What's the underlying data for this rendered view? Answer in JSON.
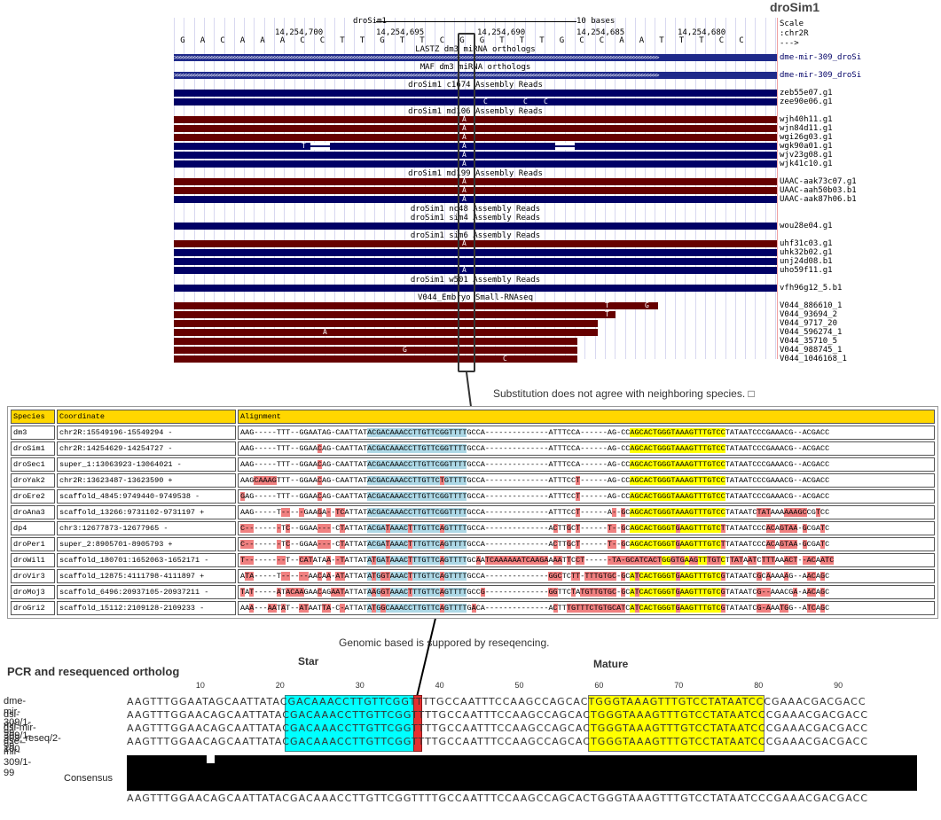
{
  "browser": {
    "title": "droSim1",
    "scale": {
      "label": "droSim1",
      "bases": "10 bases",
      "right_labels": [
        "Scale",
        ":chr2R",
        "--->"
      ]
    },
    "positions": [
      "14,254,700",
      "14,254,695",
      "14,254,690",
      "14,254,685",
      "14,254,680"
    ],
    "bases": [
      "G",
      "A",
      "C",
      "A",
      "A",
      "A",
      "C",
      "C",
      "T",
      "T",
      "G",
      "T",
      "T",
      "C",
      "G",
      "G",
      "T",
      "T",
      "T",
      "G",
      "C",
      "C",
      "A",
      "A",
      "T",
      "T",
      "T",
      "C",
      "C"
    ],
    "tracks": [
      {
        "label": "LASTZ dm3 miRNA orthologs",
        "items": [
          {
            "name": "dme-mir-309_droSi",
            "color": "chevron"
          }
        ]
      },
      {
        "label": "MAF dm3 miRNA orthologs",
        "items": [
          {
            "name": "dme-mir-309_droSi",
            "color": "chevron"
          }
        ]
      },
      {
        "label": "droSim1 c1674 Assembly Reads",
        "items": [
          {
            "name": "zeb55e07.g1",
            "color": "navy",
            "letters": []
          },
          {
            "name": "zee90e06.g1",
            "color": "navy",
            "letters": [
              "C",
              "C",
              "C"
            ]
          }
        ]
      },
      {
        "label": "droSim1 md106 Assembly Reads",
        "items": [
          {
            "name": "wjh40h11.g1",
            "color": "maroon",
            "letters": [
              "A"
            ]
          },
          {
            "name": "wjn84d11.g1",
            "color": "maroon",
            "letters": [
              "A"
            ]
          },
          {
            "name": "wgi26g03.g1",
            "color": "maroon",
            "letters": [
              "A"
            ]
          },
          {
            "name": "wgk90a01.g1",
            "color": "navy",
            "letters": [
              "T",
              "A"
            ]
          },
          {
            "name": "wjv23g08.g1",
            "color": "navy",
            "letters": [
              "A"
            ]
          },
          {
            "name": "wjk41c10.g1",
            "color": "navy",
            "letters": [
              "A"
            ]
          }
        ]
      },
      {
        "label": "droSim1 md199 Assembly Reads",
        "items": [
          {
            "name": "UAAC-aak73c07.g1",
            "color": "maroon",
            "letters": [
              "A"
            ]
          },
          {
            "name": "UAAC-aah50b03.b1",
            "color": "maroon",
            "letters": [
              "A"
            ]
          },
          {
            "name": "UAAC-aak87h06.b1",
            "color": "navy",
            "letters": [
              "A"
            ]
          }
        ]
      },
      {
        "label": "droSim1 nc48 Assembly Reads",
        "items": []
      },
      {
        "label": "droSim1 sim4 Assembly Reads",
        "items": [
          {
            "name": "wou28e04.g1",
            "color": "navy",
            "letters": []
          }
        ]
      },
      {
        "label": "droSim1 sim6 Assembly Reads",
        "items": [
          {
            "name": "uhf31c03.g1",
            "color": "maroon",
            "letters": [
              "A"
            ]
          },
          {
            "name": "uhk32b02.g1",
            "color": "navy",
            "letters": []
          },
          {
            "name": "unj24d08.b1",
            "color": "navy",
            "letters": []
          },
          {
            "name": "uho59f11.g1",
            "color": "navy",
            "letters": [
              "A"
            ]
          }
        ]
      },
      {
        "label": "droSim1 w501 Assembly Reads",
        "items": [
          {
            "name": "vfh96g12_5.b1",
            "color": "navy",
            "letters": []
          }
        ]
      },
      {
        "label": "V044_Embryo Small-RNAseq",
        "items": [
          {
            "name": "V044_886610_1",
            "color": "maroon",
            "letters": [
              "T",
              "G"
            ]
          },
          {
            "name": "V044_93694_2",
            "color": "maroon",
            "letters": [
              "T"
            ]
          },
          {
            "name": "V044_9717_20",
            "color": "maroon",
            "letters": []
          },
          {
            "name": "V044_596274_1",
            "color": "maroon",
            "letters": [
              "A"
            ]
          },
          {
            "name": "V044_35710_5",
            "color": "maroon",
            "letters": []
          },
          {
            "name": "V044_988745_1",
            "color": "maroon",
            "letters": [
              "G"
            ]
          },
          {
            "name": "V044_1046168_1",
            "color": "maroon",
            "letters": [
              "C"
            ]
          }
        ]
      }
    ]
  },
  "notes": {
    "substitution": "Substitution does not agree with neighboring species. □",
    "genomic": "Genomic based is suppored by reseqencing."
  },
  "table": {
    "headers": [
      "Species",
      "Coordinate",
      "Alignment"
    ],
    "rows": [
      {
        "species": "dm3",
        "coord": "chr2R:15549196-15549294 -",
        "aln": "AAG-----TTT--GGAATAG-CAATTATACGACAAACCTTGTTCGGTTTTGCCA--------------ATTTCCA------AG-CCAGCACTGGGTAAAGTTTGTCCTATAATCCCGAAACG--ACGACC"
      },
      {
        "species": "droSim1",
        "coord": "chr2R:14254629-14254727 -",
        "aln": "AAG-----TTT--GGAACAG-CAATTATACGACAAACCTTGTTCGGTTTTGCCA--------------ATTTCCA------AG-CCAGCACTGGGTAAAGTTTGTCCTATAATCCCGAAACG--ACGACC"
      },
      {
        "species": "droSec1",
        "coord": "super_1:13063923-13064021 -",
        "aln": "AAG-----TTT--GGAACAG-CAATTATACGACAAACCTTGTTCGGTTTTGCCA--------------ATTTCCA------AG-CCAGCACTGGGTAAAGTTTGTCCTATAATCCCGAAACG--ACGACC"
      },
      {
        "species": "droYak2",
        "coord": "chr2R:13623487-13623590 +",
        "aln": "AAGCAAAGTTT--GGAACAG-CAATTATACGACAAACCTTGTTCTGTTTTGCCA--------------ATTTCCT------AG-CCAGCACTGGGTAAAGTTTGTCCTATAATCCCGAAACG--ACGACC"
      },
      {
        "species": "droEre2",
        "coord": "scaffold_4845:9749440-9749538 -",
        "aln": "GAG-----TTT--GGAACAG-CAATTATACGACAAACCTTGTTCGGTTTTGCCA--------------ATTTCCT------AG-CCAGCACTGGGTAAAGTTTGTCCTATAATCCCGAAACG--ACGACC"
      },
      {
        "species": "droAna3",
        "coord": "scaffold_13266:9731102-9731197 +",
        "aln": "AAG-----T-----GAAGA--TCATTATACGACAAACCTTGTTCGGTTTTGCCA--------------ATTTCCT------A--GCAGCACTGGGTAAAGTTTGTCCTATAATCTATAAAAAAGCCGTCC"
      },
      {
        "species": "dp4",
        "coord": "chr3:12677873-12677965 -",
        "aln": "C--------TC--GGAA----CTATTATACGATAAACTTTGTTCAGTTTTGCCA--------------ACTTGCT------T--GCAGCACTGGGTGAAGTTTGTCTTATAATCCCACAGTAA-GCGATC"
      },
      {
        "species": "droPer1",
        "coord": "super_2:8905701-8905793 +",
        "aln": "C--------TC--GGAA----CTATTATACGATAAACTTTGTTCAGTTTTGCCA--------------ACTTGCT------T--GCAGCACTGGGTGAAGTTTGTCTTATAATCCCACAGTAA-GCGATC"
      },
      {
        "species": "droWil1",
        "coord": "scaffold_180701:1652063-1652171 -",
        "aln": "T---------T--CATATAA--TATTATATGATAAACTTTGTTCAGTTTTGCAATCAAAAAATCAAGAAAATTCCT------TA-GCATCACTGGGTGAAGTTTGTCTTATAATCTTTAAACT--ACAATC"
      },
      {
        "species": "droVir3",
        "coord": "scaffold_12875:4111798-4111897 +",
        "aln": "ATA-----T------AACAA-ATATTATATGGTAAACTTTGTTCAGTTTTGCCA--------------GGCTCTT-TTTGTGC-GCATCACTGGGTGAAGTTTGTCGTATAATCGCAAAAAG--AACAGC"
      },
      {
        "species": "droMoj3",
        "coord": "scaffold_6496:20937105-20937211 -",
        "aln": "TAT-----ATACAAGAACAGAATATTATAAGGTAAACTTTGTTCAGTTTTGCCG--------------GGTTCTATGTTGTGC-GCATCACTGGGTGAAGTTTGTCGTATAATCG--AAACGA-AACAGC"
      },
      {
        "species": "droGri2",
        "coord": "scaffold_15112:2109128-2109233 -",
        "aln": "AAA---AATAT--ATAATTA-C-ATTATATGGCAAACCTTGTTCAGTTTTGACA--------------ACTTTGTTTCTGTGCATCATCACTGGGTGAAGTTTGTCGTATAATCG-AAATGG--ATCAGC"
      }
    ]
  },
  "ortholog": {
    "title": "PCR and resequenced ortholog",
    "star_label": "Star",
    "mature_label": "Mature",
    "ticks": [
      "10",
      "20",
      "30",
      "40",
      "50",
      "60",
      "70",
      "80",
      "90"
    ],
    "sequences": [
      {
        "name": "dme-mir-309/1-99",
        "seq": "AAGTTTGGAATAGCAATTATACGACAAACCTTGTTCGGTTTTGCCAATTTCCAAGCCAGCACTGGGTAAAGTTTGTCCTATAATCCCGAAACGACGACC"
      },
      {
        "name": "dsi-mir-309/1-99",
        "seq": "AAGTTTGGAACAGCAATTATACGACAAACCTTGTTCGGTTTTGCCAATTTCCAAGCCAGCACTGGGTAAAGTTTGTCCTATAATCCCGAAACGACGACC"
      },
      {
        "name": "dsi-mir-309_reseq/2-100",
        "seq": "AAGTTTGGAACAGCAATTATACGACAAACCTTGTTCGGTTTTGCCAATTTCCAAGCCAGCACTGGGTAAAGTTTGTCCTATAATCCCGAAACGACGACC"
      },
      {
        "name": "dse-mir-309/1-99",
        "seq": "AAGTTTGGAACAGCAATTATACGACAAACCTTGTTCGGTTTTGCCAATTTCCAAGCCAGCACTGGGTAAAGTTTGTCCTATAATCCCGAAACGACGACC"
      }
    ],
    "consensus_label": "Consensus",
    "consensus": "AAGTTTGGAACAGCAATTATACGACAAACCTTGTTCGGTTTTGCCAATTTCCAAGCCAGCACTGGGTAAAGTTTGTCCTATAATCCCGAAACGACGACC",
    "colors": {
      "star": "#00ffff",
      "mature": "#ffff00",
      "substitution": "#e53030"
    }
  }
}
